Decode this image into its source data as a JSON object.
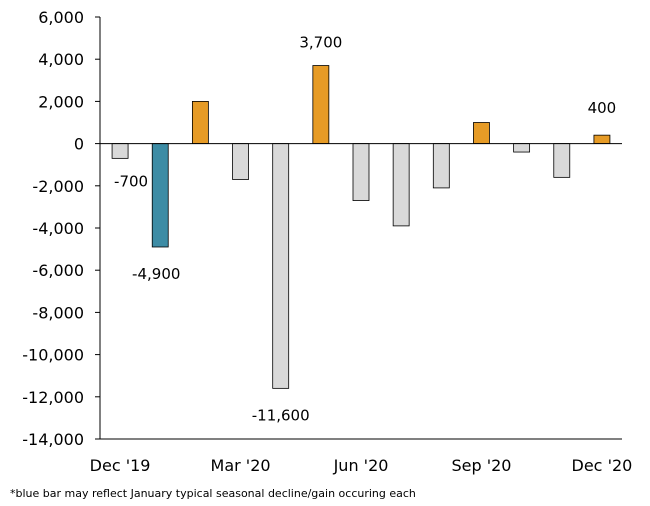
{
  "chart_data": {
    "type": "bar",
    "categories": [
      "Dec '19",
      "Jan '20",
      "Feb '20",
      "Mar '20",
      "Apr '20",
      "May '20",
      "Jun '20",
      "Jul '20",
      "Aug '20",
      "Sep '20",
      "Oct '20",
      "Nov '20",
      "Dec '20"
    ],
    "values": [
      -700,
      -4900,
      2000,
      -1700,
      -11600,
      3700,
      -2700,
      -3900,
      -2100,
      1000,
      -400,
      -1600,
      400
    ],
    "x_tick_labels": [
      "Dec '19",
      "Mar '20",
      "Jun '20",
      "Sep '20",
      "Dec '20"
    ],
    "y_tick_labels": [
      "6,000",
      "4,000",
      "2,000",
      "0",
      "-2,000",
      "-4,000",
      "-6,000",
      "-8,000",
      "-10,000",
      "-12,000",
      "-14,000"
    ],
    "data_labels": [
      {
        "index": 0,
        "text": "-700"
      },
      {
        "index": 1,
        "text": "-4,900"
      },
      {
        "index": 4,
        "text": "-11,600"
      },
      {
        "index": 5,
        "text": "3,700"
      },
      {
        "index": 12,
        "text": "400"
      }
    ],
    "ylim": [
      -14000,
      6000
    ],
    "ytick_step": 2000,
    "title": "",
    "xlabel": "",
    "ylabel": "",
    "grid": false,
    "colors": {
      "negative": "#d9d9d9",
      "positive": "#e69b26",
      "highlight": "#3d8ca5",
      "outline": "#000000"
    },
    "highlight_index": 1
  },
  "footnote": "*blue bar may reflect January typical seasonal decline/gain occuring each"
}
